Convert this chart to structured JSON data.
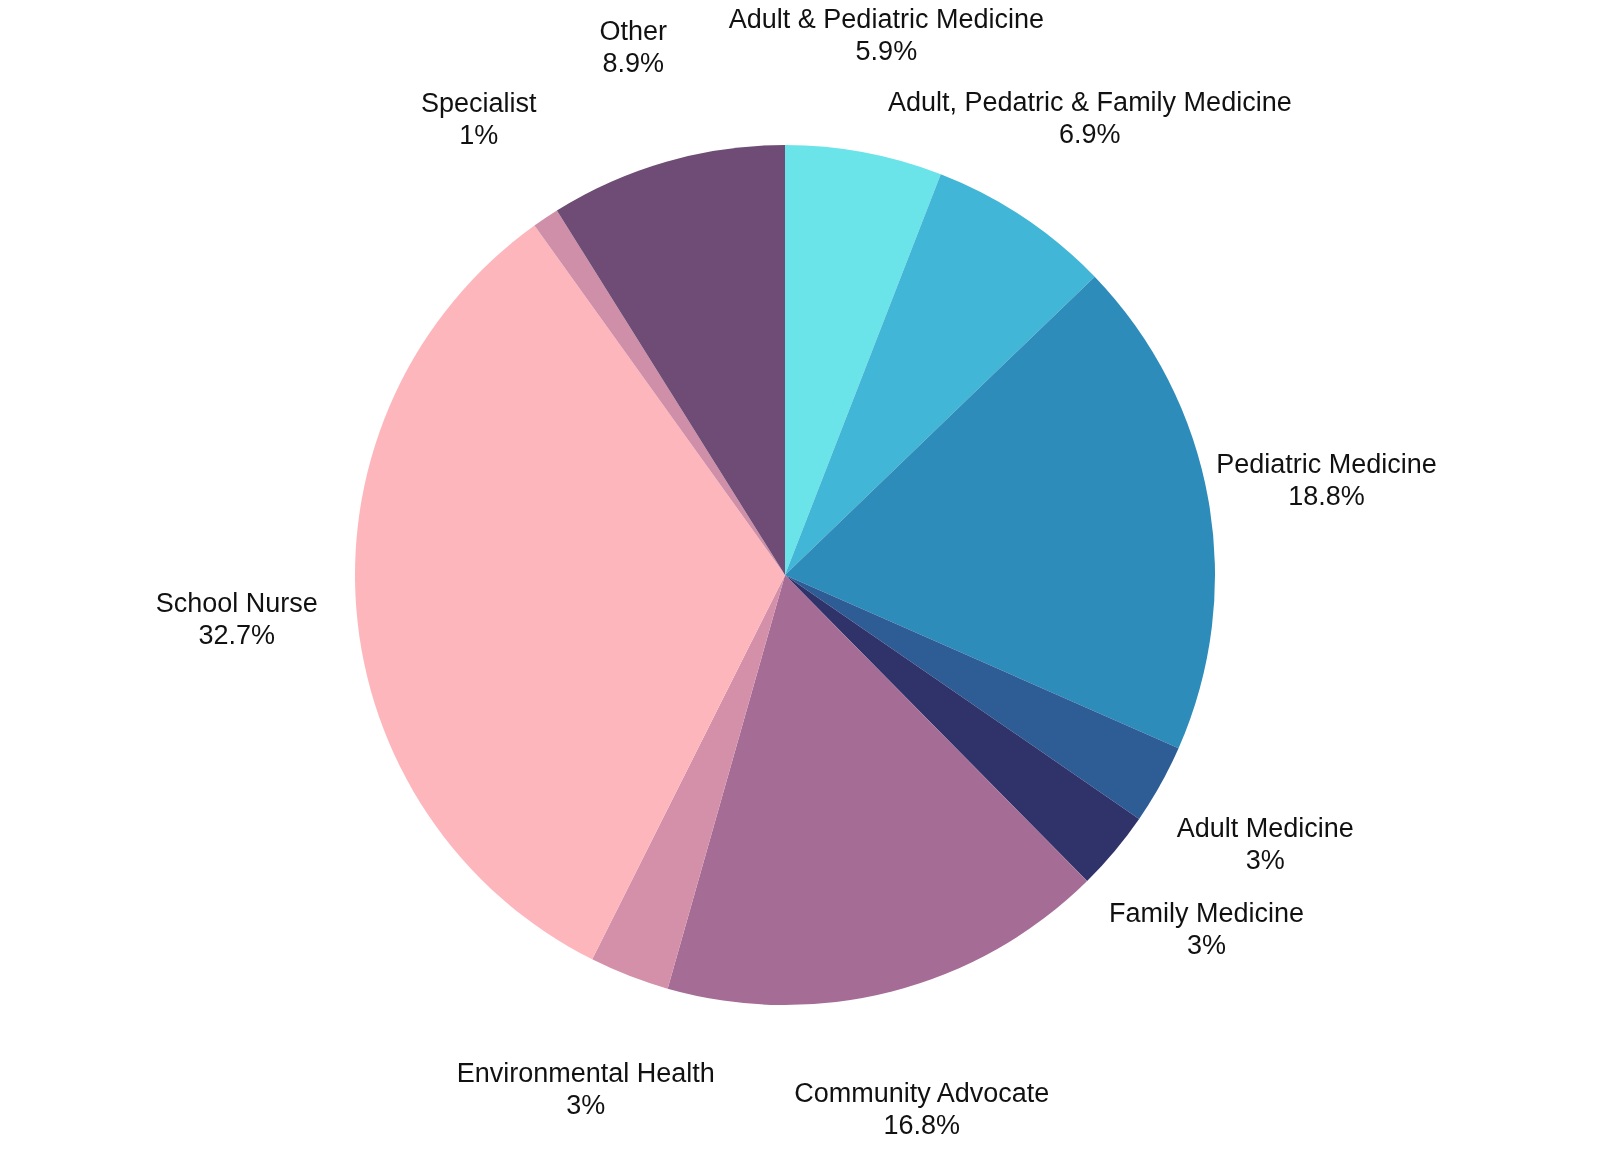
{
  "chart_data": {
    "type": "pie",
    "categories": [
      "Adult & Pediatric Medicine",
      "Adult, Pedatric & Family Medicine",
      "Pediatric Medicine",
      "Adult Medicine",
      "Family Medicine",
      "Community Advocate",
      "Environmental Health",
      "School Nurse",
      "Specialist",
      "Other"
    ],
    "values": [
      5.9,
      6.9,
      18.8,
      3,
      3,
      16.8,
      3,
      32.7,
      1,
      8.9
    ],
    "value_labels": [
      "5.9%",
      "6.9%",
      "18.8%",
      "3%",
      "3%",
      "16.8%",
      "3%",
      "32.7%",
      "1%",
      "8.9%"
    ],
    "colors": [
      "#6ae4e8",
      "#42b6d6",
      "#2e8cba",
      "#2e5d96",
      "#30336a",
      "#a56c96",
      "#d48fa9",
      "#fdb7bc",
      "#d08fa8",
      "#6e4c75"
    ],
    "legend": false
  }
}
